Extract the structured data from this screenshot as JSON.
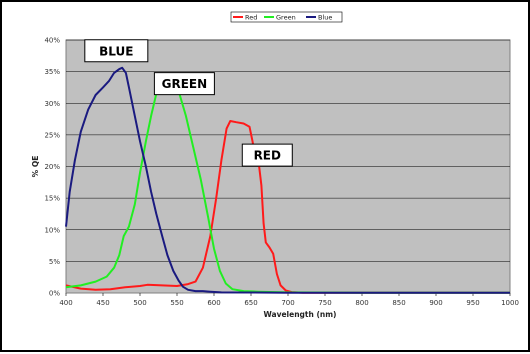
{
  "chart_data": {
    "type": "line",
    "xlabel": "Wavelength (nm)",
    "ylabel": "% QE",
    "xlim": [
      400,
      1000
    ],
    "ylim": [
      0,
      40
    ],
    "x_ticks": [
      "400",
      "450",
      "500",
      "550",
      "600",
      "650",
      "700",
      "750",
      "800",
      "850",
      "900",
      "950",
      "1000"
    ],
    "y_ticks": [
      "0%",
      "5%",
      "10%",
      "15%",
      "20%",
      "25%",
      "30%",
      "35%",
      "40%"
    ],
    "grid": "horizontal",
    "legend_position": "top-center",
    "colors": {
      "plot_background": "#c0c0c0",
      "red": "#ff1a1a",
      "green": "#22ee22",
      "blue": "#1a1a80"
    },
    "series": [
      {
        "name": "Red",
        "color": "#ff1a1a",
        "points": [
          [
            400,
            1.2
          ],
          [
            420,
            0.7
          ],
          [
            440,
            0.5
          ],
          [
            460,
            0.6
          ],
          [
            480,
            0.9
          ],
          [
            500,
            1.1
          ],
          [
            510,
            1.3
          ],
          [
            530,
            1.2
          ],
          [
            550,
            1.1
          ],
          [
            565,
            1.4
          ],
          [
            575,
            1.8
          ],
          [
            585,
            4
          ],
          [
            595,
            9
          ],
          [
            603,
            15
          ],
          [
            610,
            21
          ],
          [
            617,
            26
          ],
          [
            622,
            27.2
          ],
          [
            630,
            27
          ],
          [
            640,
            26.8
          ],
          [
            648,
            26.3
          ],
          [
            652,
            24
          ],
          [
            655,
            22
          ],
          [
            660,
            21
          ],
          [
            664,
            17
          ],
          [
            667,
            11
          ],
          [
            670,
            8
          ],
          [
            675,
            7.2
          ],
          [
            680,
            6.2
          ],
          [
            685,
            3
          ],
          [
            690,
            1.2
          ],
          [
            697,
            0.4
          ],
          [
            705,
            0.15
          ],
          [
            720,
            0.05
          ],
          [
            800,
            0.05
          ],
          [
            1000,
            0.05
          ]
        ]
      },
      {
        "name": "Green",
        "color": "#22ee22",
        "points": [
          [
            400,
            0.9
          ],
          [
            420,
            1.2
          ],
          [
            440,
            1.8
          ],
          [
            455,
            2.6
          ],
          [
            465,
            4
          ],
          [
            472,
            6
          ],
          [
            478,
            9
          ],
          [
            485,
            10.5
          ],
          [
            493,
            14
          ],
          [
            500,
            19
          ],
          [
            508,
            24
          ],
          [
            515,
            28
          ],
          [
            522,
            31.5
          ],
          [
            530,
            33.8
          ],
          [
            537,
            34.5
          ],
          [
            543,
            34
          ],
          [
            552,
            32
          ],
          [
            562,
            28
          ],
          [
            572,
            23
          ],
          [
            582,
            18
          ],
          [
            592,
            12
          ],
          [
            600,
            7
          ],
          [
            608,
            3.5
          ],
          [
            616,
            1.5
          ],
          [
            625,
            0.6
          ],
          [
            640,
            0.3
          ],
          [
            660,
            0.2
          ],
          [
            700,
            0.1
          ],
          [
            800,
            0.05
          ],
          [
            1000,
            0.05
          ]
        ]
      },
      {
        "name": "Blue",
        "color": "#1a1a80",
        "points": [
          [
            400,
            10.5
          ],
          [
            405,
            16
          ],
          [
            412,
            21
          ],
          [
            420,
            25.5
          ],
          [
            430,
            29
          ],
          [
            440,
            31.3
          ],
          [
            450,
            32.5
          ],
          [
            458,
            33.5
          ],
          [
            465,
            34.8
          ],
          [
            472,
            35.4
          ],
          [
            476,
            35.6
          ],
          [
            481,
            34.8
          ],
          [
            486,
            32
          ],
          [
            493,
            28
          ],
          [
            500,
            24
          ],
          [
            508,
            20
          ],
          [
            515,
            16
          ],
          [
            522,
            12.5
          ],
          [
            530,
            9
          ],
          [
            537,
            6
          ],
          [
            545,
            3.5
          ],
          [
            552,
            2
          ],
          [
            558,
            1
          ],
          [
            565,
            0.5
          ],
          [
            575,
            0.3
          ],
          [
            585,
            0.3
          ],
          [
            595,
            0.2
          ],
          [
            610,
            0.1
          ],
          [
            700,
            0.05
          ],
          [
            800,
            0.05
          ],
          [
            1000,
            0.05
          ]
        ]
      }
    ],
    "annotations": [
      {
        "text": "BLUE",
        "anchor_x": 468,
        "anchor_y": 38.3
      },
      {
        "text": "GREEN",
        "anchor_x": 560,
        "anchor_y": 33.1
      },
      {
        "text": "RED",
        "anchor_x": 672,
        "anchor_y": 21.8
      }
    ]
  }
}
